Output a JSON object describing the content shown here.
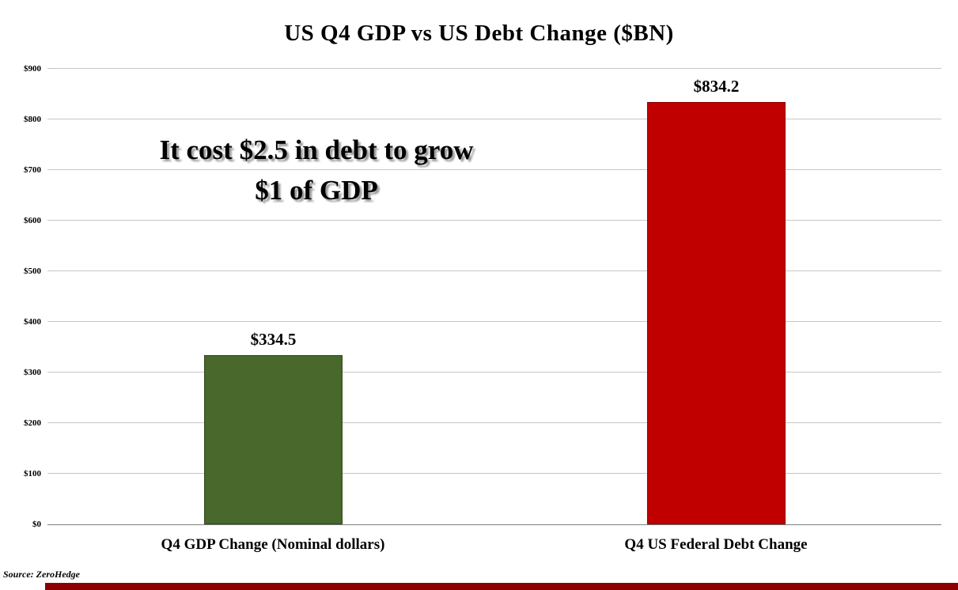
{
  "title": "US Q4 GDP vs US Debt Change ($BN)",
  "annotation": {
    "line1": "It cost $2.5 in debt to grow",
    "line2": "$1 of GDP"
  },
  "source": "Source: ZeroHedge",
  "footer_bar_color": "#8b0000",
  "chart_data": {
    "type": "bar",
    "title": "US Q4 GDP vs US Debt Change ($BN)",
    "categories": [
      "Q4 GDP Change (Nominal dollars)",
      "Q4 US Federal Debt Change"
    ],
    "values": [
      334.5,
      834.2
    ],
    "value_labels": [
      "$334.5",
      "$834.2"
    ],
    "colors": [
      "#48682c",
      "#c00000"
    ],
    "xlabel": "",
    "ylabel": "",
    "ylim": [
      0,
      900
    ],
    "ytick_interval": 100,
    "yticks": [
      "$0",
      "$100",
      "$200",
      "$300",
      "$400",
      "$500",
      "$600",
      "$700",
      "$800",
      "$900"
    ],
    "grid": true,
    "legend": "none"
  }
}
